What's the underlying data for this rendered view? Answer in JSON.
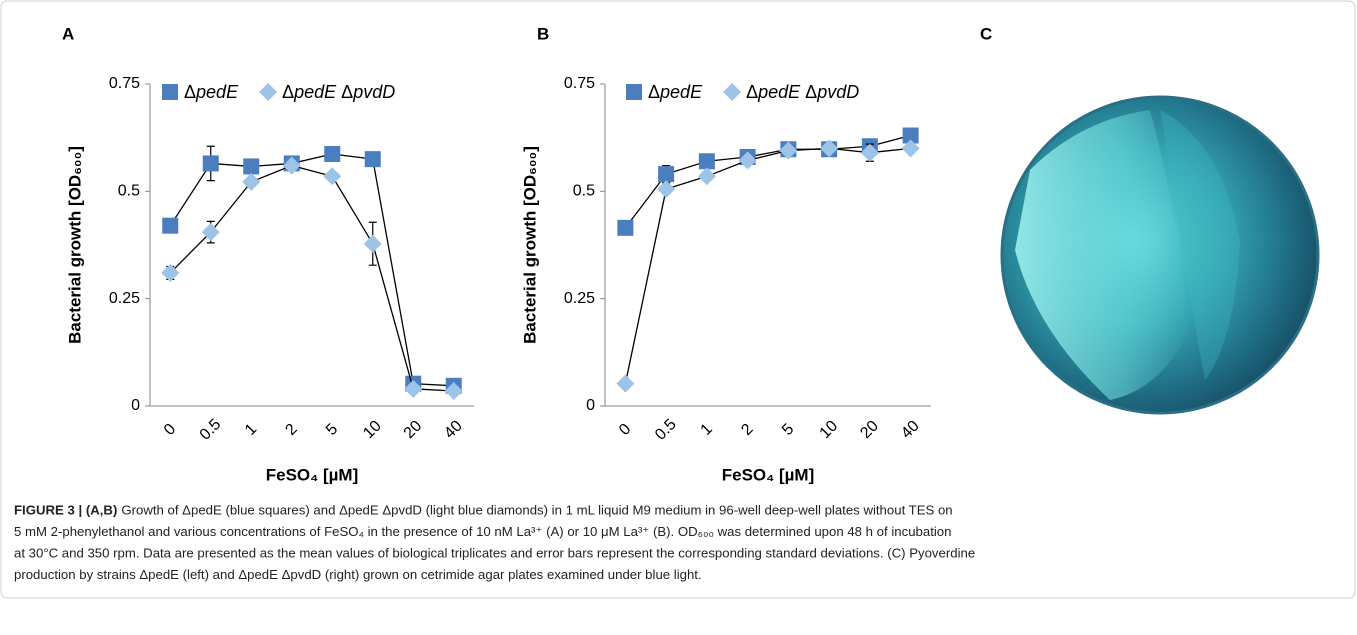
{
  "chart_data": [
    {
      "type": "line",
      "panel": "A",
      "ylabel": "Bacterial growth [OD₆₀₀]",
      "xlabel": "FeSO₄ [µM]",
      "categories": [
        "0",
        "0.5",
        "1",
        "2",
        "5",
        "10",
        "20",
        "40"
      ],
      "ylim": [
        0,
        0.75
      ],
      "yticks": [
        0,
        0.25,
        0.5,
        0.75
      ],
      "series": [
        {
          "name": "ΔpedE",
          "color": "#4a7ebf",
          "marker": "square",
          "values": [
            0.42,
            0.565,
            0.558,
            0.565,
            0.587,
            0.575,
            0.052,
            0.047
          ],
          "errors": [
            0.005,
            0.04,
            0.01,
            0.005,
            0.005,
            0.01,
            0.005,
            0.005
          ]
        },
        {
          "name": "ΔpedE ΔpvdD",
          "color": "#9dc3e6",
          "marker": "diamond",
          "values": [
            0.31,
            0.405,
            0.522,
            0.56,
            0.535,
            0.378,
            0.04,
            0.035
          ],
          "errors": [
            0.015,
            0.025,
            0.01,
            0.005,
            0.005,
            0.05,
            0.005,
            0.005
          ]
        }
      ]
    },
    {
      "type": "line",
      "panel": "B",
      "ylabel": "Bacterial growth [OD₆₀₀]",
      "xlabel": "FeSO₄ [µM]",
      "categories": [
        "0",
        "0.5",
        "1",
        "2",
        "5",
        "10",
        "20",
        "40"
      ],
      "ylim": [
        0,
        0.75
      ],
      "yticks": [
        0,
        0.25,
        0.5,
        0.75
      ],
      "series": [
        {
          "name": "ΔpedE",
          "color": "#4a7ebf",
          "marker": "square",
          "values": [
            0.415,
            0.54,
            0.57,
            0.58,
            0.598,
            0.598,
            0.605,
            0.63
          ],
          "errors": [
            0.005,
            0.02,
            0.005,
            0.005,
            0.005,
            0.005,
            0.01,
            0.005
          ]
        },
        {
          "name": "ΔpedE ΔpvdD",
          "color": "#9dc3e6",
          "marker": "diamond",
          "values": [
            0.052,
            0.505,
            0.535,
            0.572,
            0.595,
            0.6,
            0.59,
            0.6
          ],
          "errors": [
            0.005,
            0.005,
            0.005,
            0.005,
            0.005,
            0.005,
            0.02,
            0.005
          ]
        }
      ]
    }
  ],
  "panel_c": "C",
  "caption": {
    "label": "FIGURE 3 | (A,B)",
    "lines": [
      "Growth of ΔpedE (blue squares) and ΔpedE ΔpvdD (light blue diamonds) in 1 mL liquid M9 medium in 96-well deep-well plates without TES on",
      "5 mM 2-phenylethanol and various concentrations of FeSO₄ in the presence of 10 nM La³⁺ (A) or 10 μM La³⁺ (B). OD₆₀₀ was determined upon 48 h of incubation",
      "at 30°C and 350 rpm. Data are presented as the mean values of biological triplicates and error bars represent the corresponding standard deviations. (C) Pyoverdine",
      "production by strains ΔpedE (left) and ΔpedE ΔpvdD (right) grown on cetrimide agar plates examined under blue light."
    ]
  }
}
